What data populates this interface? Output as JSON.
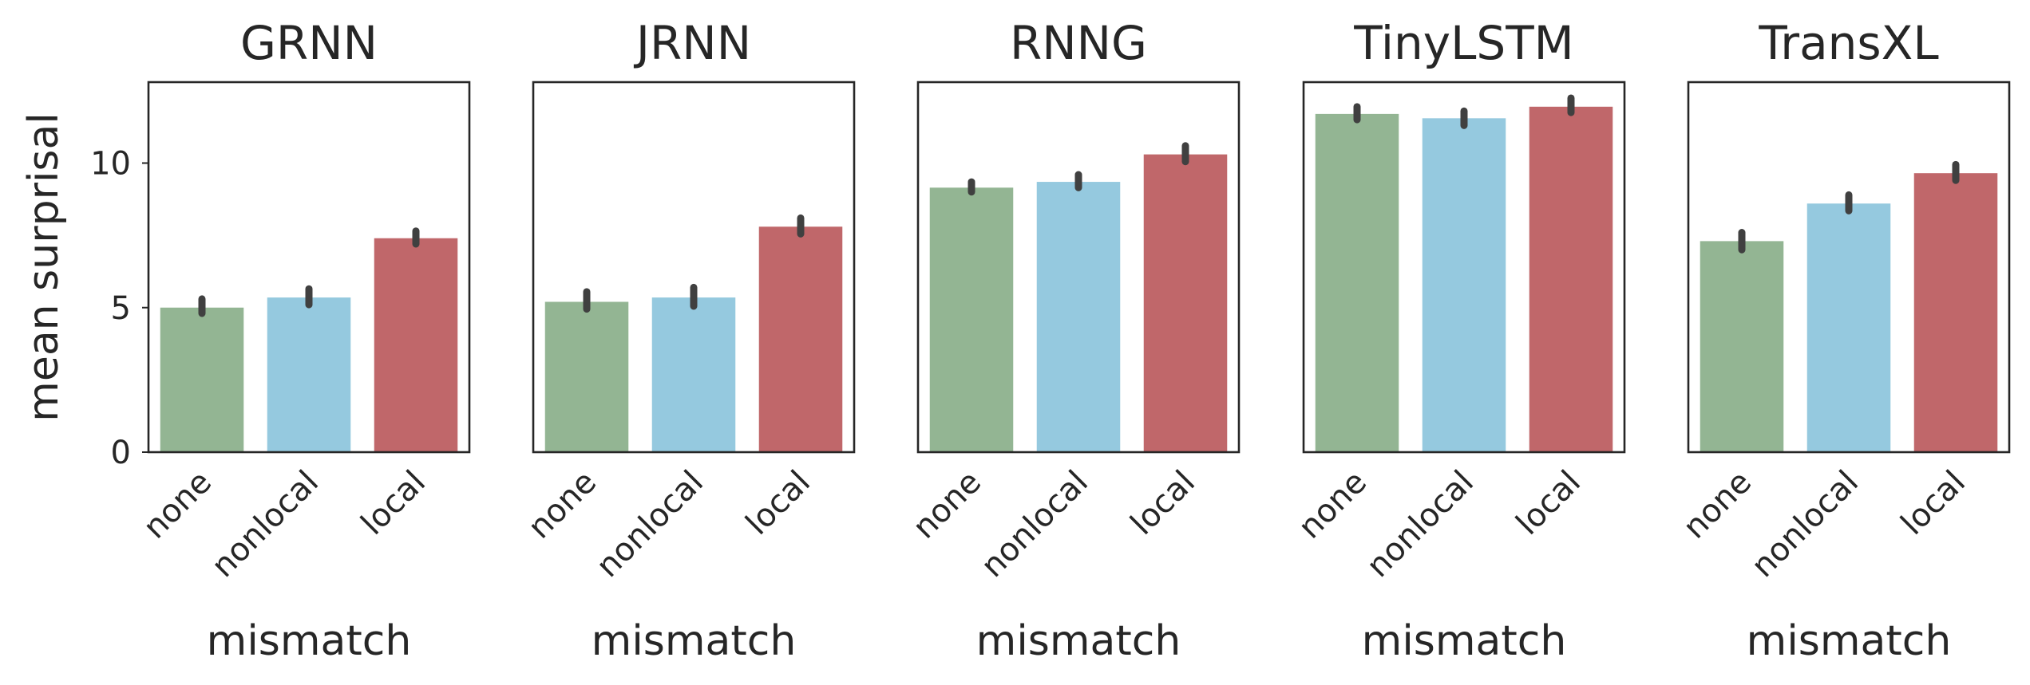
{
  "chart_data": {
    "type": "bar",
    "layout": "facet-grid-1x5",
    "shared_y": true,
    "ylabel": "mean surprisal",
    "xlabel": "mismatch",
    "ylim": [
      0,
      12.8
    ],
    "yticks": [
      0,
      5,
      10
    ],
    "categories": [
      "none",
      "nonlocal",
      "local"
    ],
    "colors": {
      "none": "#93b593",
      "nonlocal": "#95c9df",
      "local": "#c0676a",
      "error": "#404040"
    },
    "grid": false,
    "legend": "none",
    "panels": [
      {
        "title": "GRNN",
        "values": [
          5.0,
          5.35,
          7.4
        ],
        "errors": [
          [
            4.8,
            5.3
          ],
          [
            5.1,
            5.65
          ],
          [
            7.2,
            7.65
          ]
        ]
      },
      {
        "title": "JRNN",
        "values": [
          5.2,
          5.35,
          7.8
        ],
        "errors": [
          [
            4.95,
            5.55
          ],
          [
            5.05,
            5.7
          ],
          [
            7.55,
            8.1
          ]
        ]
      },
      {
        "title": "RNNG",
        "values": [
          9.15,
          9.35,
          10.3
        ],
        "errors": [
          [
            9.0,
            9.35
          ],
          [
            9.15,
            9.6
          ],
          [
            10.05,
            10.6
          ]
        ]
      },
      {
        "title": "TinyLSTM",
        "values": [
          11.7,
          11.55,
          11.95
        ],
        "errors": [
          [
            11.5,
            11.95
          ],
          [
            11.3,
            11.8
          ],
          [
            11.75,
            12.25
          ]
        ]
      },
      {
        "title": "TransXL",
        "values": [
          7.3,
          8.6,
          9.65
        ],
        "errors": [
          [
            7.0,
            7.6
          ],
          [
            8.35,
            8.9
          ],
          [
            9.4,
            9.95
          ]
        ]
      }
    ]
  }
}
